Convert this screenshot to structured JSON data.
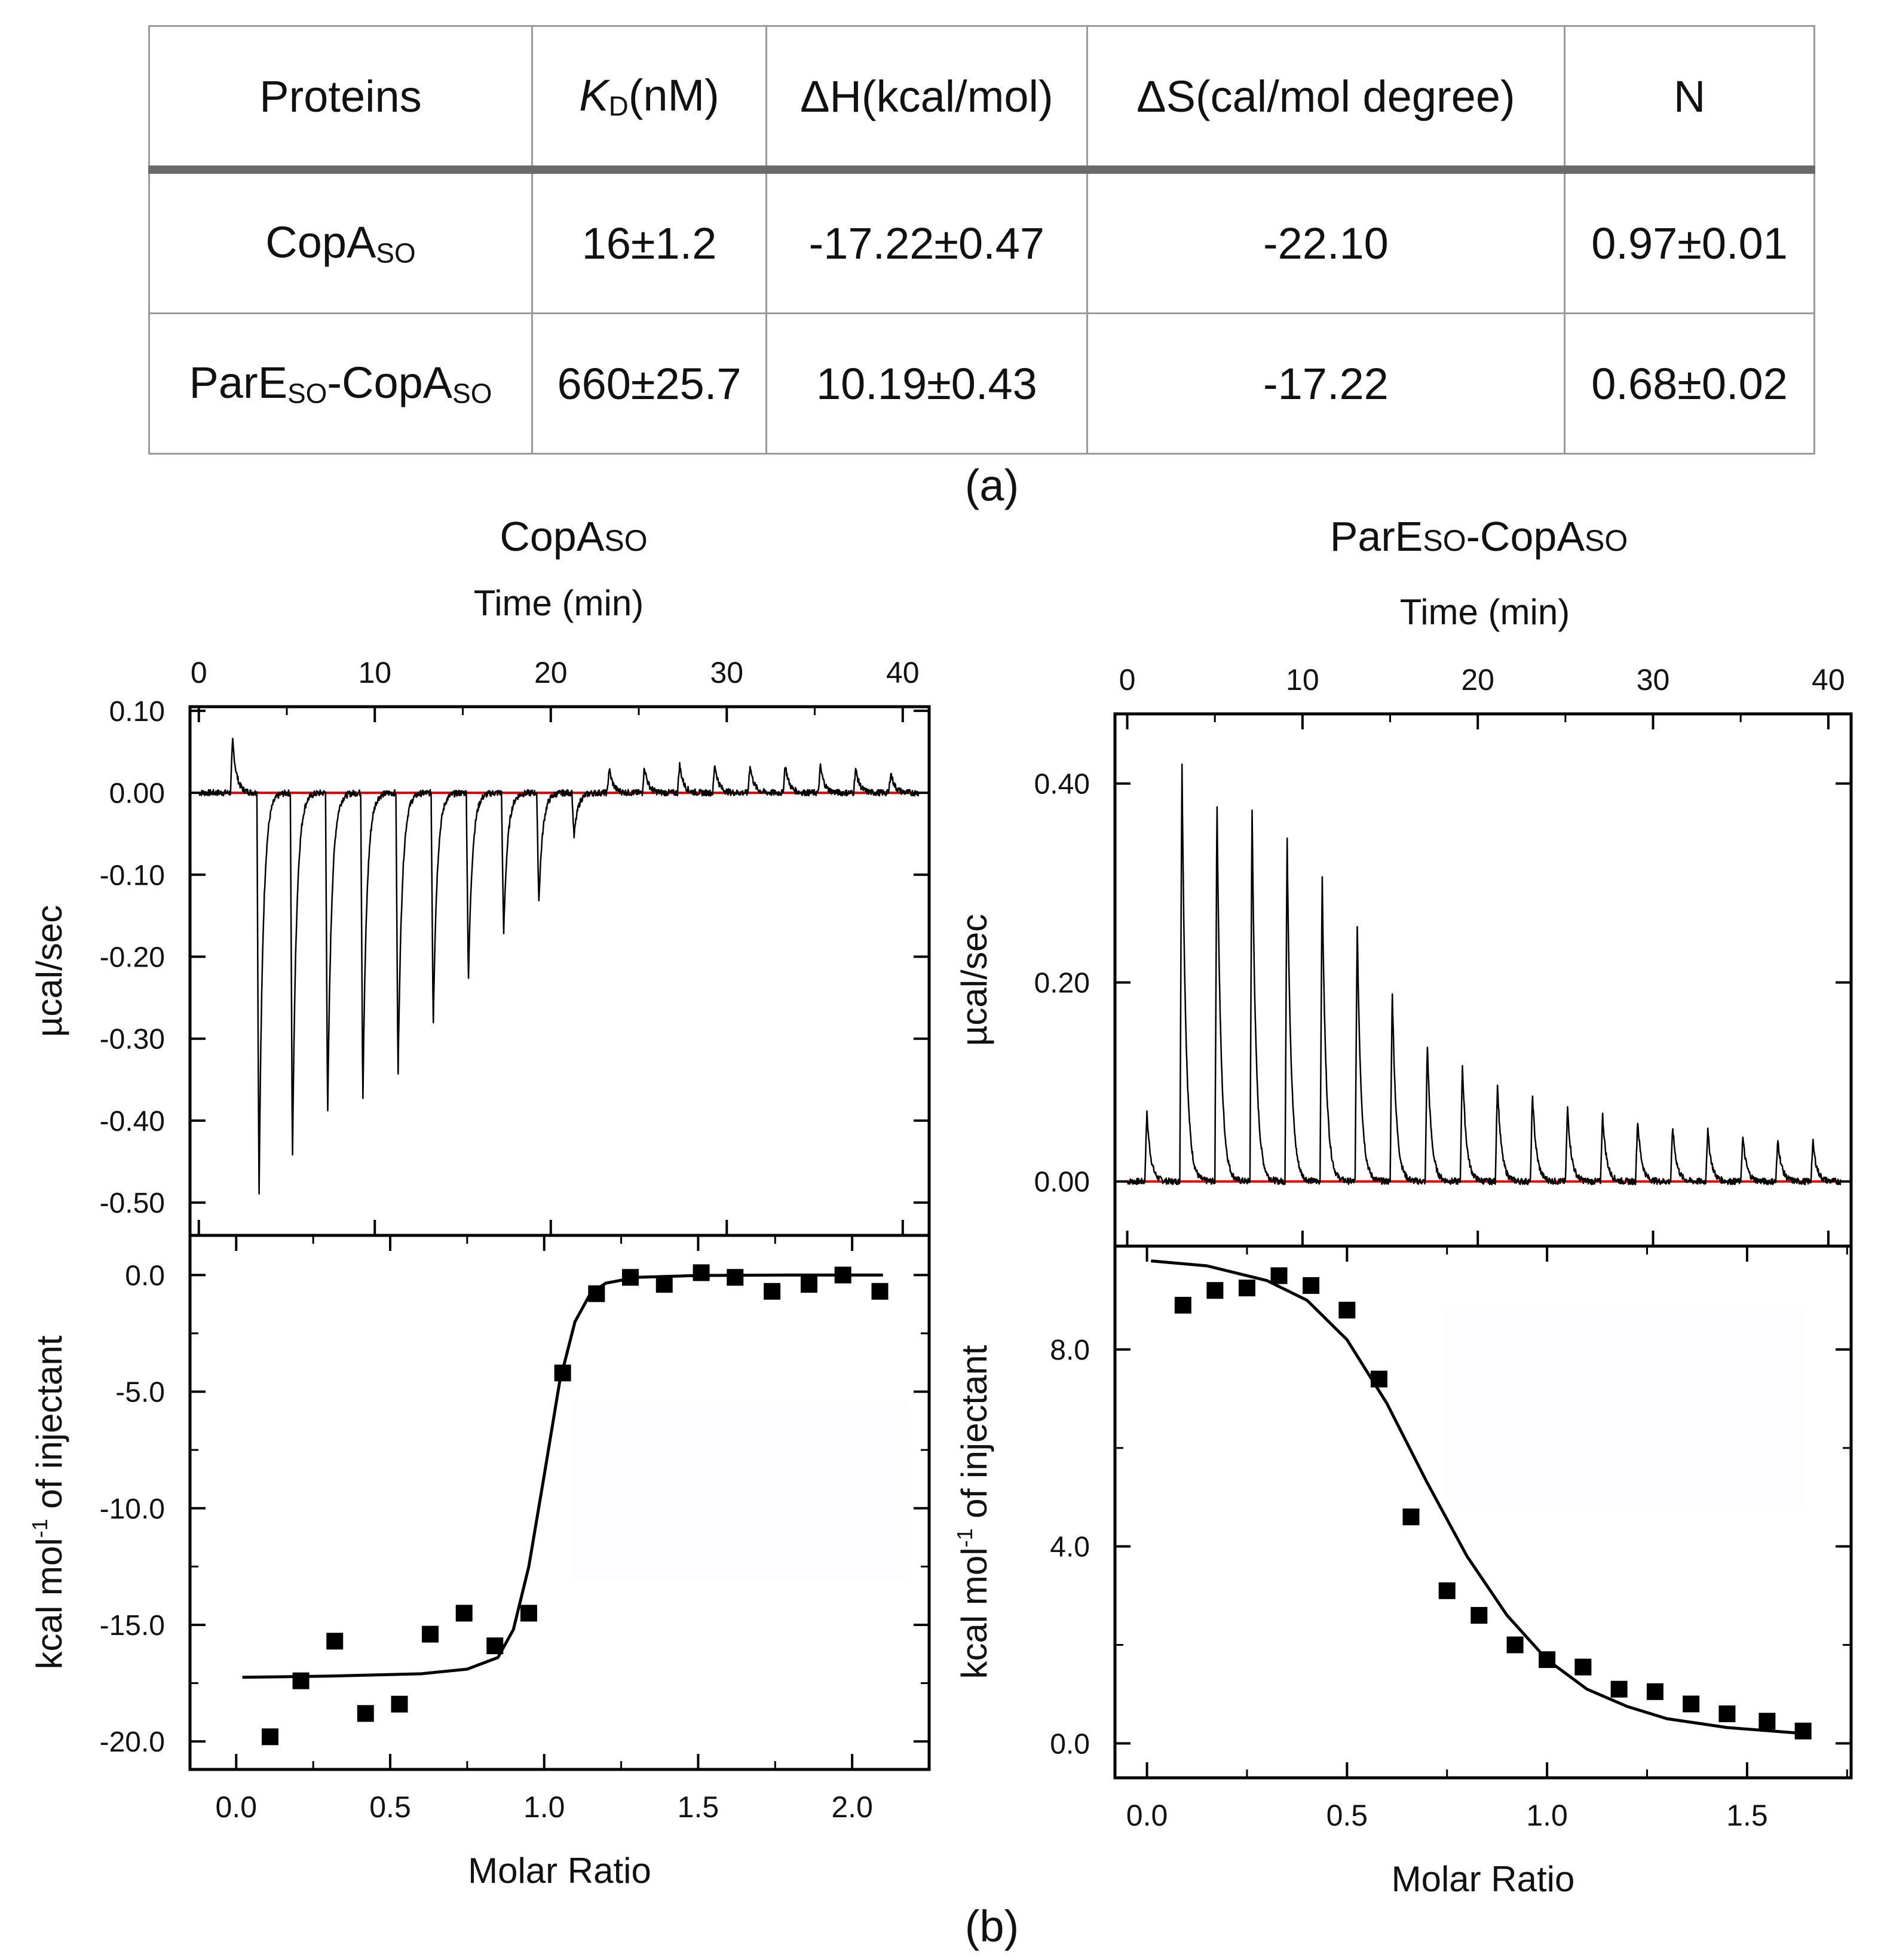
{
  "table": {
    "headers": [
      "Proteins",
      "K",
      "D",
      "(nM)",
      "ΔH(kcal/mol)",
      "ΔS(cal/mol degree)",
      "N"
    ],
    "rows": [
      {
        "protein": "CopA",
        "protein_sub": "SO",
        "protein2": "",
        "protein2_sub": "",
        "kd": "16±1.2",
        "dh": "-17.22±0.47",
        "ds": "-22.10",
        "n": "0.97±0.01"
      },
      {
        "protein": "ParE",
        "protein_sub": "SO",
        "protein2": "-CopA",
        "protein2_sub": "SO",
        "kd": "660±25.7",
        "dh": "10.19±0.43",
        "ds": "-17.22",
        "n": "0.68±0.02"
      }
    ]
  },
  "captions": {
    "a": "(a)",
    "b": "(b)"
  },
  "chart_data": [
    {
      "type": "line",
      "panel": "left-top",
      "title": "CopA",
      "title_sub": "SO",
      "xlabel": "Time (min)",
      "ylabel": "µcal/sec",
      "xlim": [
        -0.5,
        41.5
      ],
      "ylim": [
        -0.54,
        0.105
      ],
      "xticks": [
        0,
        10,
        20,
        30,
        40
      ],
      "yticks": [
        0.1,
        0.0,
        -0.1,
        -0.2,
        -0.3,
        -0.4,
        -0.5
      ],
      "ytick_labels": [
        "0.10",
        "0.00",
        "-0.10",
        "-0.20",
        "-0.30",
        "-0.40",
        "-0.50"
      ],
      "baseline": 0.0,
      "baseline_color": "#e00000",
      "trace_color": "#000000",
      "injections": [
        {
          "t": 1.8,
          "peak": 0.065
        },
        {
          "t": 3.3,
          "peak": -0.5
        },
        {
          "t": 5.2,
          "peak": -0.455
        },
        {
          "t": 7.2,
          "peak": -0.4
        },
        {
          "t": 9.2,
          "peak": -0.38
        },
        {
          "t": 11.2,
          "peak": -0.35
        },
        {
          "t": 13.2,
          "peak": -0.285
        },
        {
          "t": 15.2,
          "peak": -0.23
        },
        {
          "t": 17.2,
          "peak": -0.175
        },
        {
          "t": 19.2,
          "peak": -0.135
        },
        {
          "t": 21.2,
          "peak": -0.055
        },
        {
          "t": 23.2,
          "peak": 0.03
        },
        {
          "t": 25.2,
          "peak": 0.032
        },
        {
          "t": 27.2,
          "peak": 0.035
        },
        {
          "t": 29.2,
          "peak": 0.035
        },
        {
          "t": 31.2,
          "peak": 0.034
        },
        {
          "t": 33.2,
          "peak": 0.035
        },
        {
          "t": 35.2,
          "peak": 0.033
        },
        {
          "t": 37.2,
          "peak": 0.03
        },
        {
          "t": 39.2,
          "peak": 0.025
        }
      ]
    },
    {
      "type": "scatter",
      "panel": "left-bottom",
      "xlabel": "Molar Ratio",
      "ylabel": "kcal mol-1 of injectant",
      "xlim": [
        -0.15,
        2.25
      ],
      "ylim": [
        -21.2,
        1.7
      ],
      "xticks": [
        0.0,
        0.5,
        1.0,
        1.5,
        2.0
      ],
      "xtick_labels": [
        "0.0",
        "0.5",
        "1.0",
        "1.5",
        "2.0"
      ],
      "yticks": [
        0.0,
        -5.0,
        -10.0,
        -15.0,
        -20.0
      ],
      "ytick_labels": [
        "0.0",
        "-5.0",
        "-10.0",
        "-15.0",
        "-20.0"
      ],
      "x": [
        0.11,
        0.21,
        0.32,
        0.42,
        0.53,
        0.63,
        0.74,
        0.84,
        0.95,
        1.06,
        1.17,
        1.28,
        1.39,
        1.51,
        1.62,
        1.74,
        1.86,
        1.97,
        2.09
      ],
      "y": [
        -19.8,
        -17.4,
        -15.7,
        -18.8,
        -18.4,
        -15.4,
        -14.5,
        -15.9,
        -14.5,
        -4.2,
        -0.8,
        -0.1,
        -0.4,
        0.1,
        -0.1,
        -0.7,
        -0.4,
        -0.0,
        -0.7
      ],
      "fit": {
        "x": [
          0.02,
          0.3,
          0.6,
          0.75,
          0.85,
          0.9,
          0.95,
          1.0,
          1.05,
          1.1,
          1.15,
          1.2,
          1.3,
          1.5,
          1.8,
          2.1
        ],
        "y": [
          -17.25,
          -17.2,
          -17.1,
          -16.9,
          -16.4,
          -15.2,
          -12.5,
          -8.6,
          -4.6,
          -2.0,
          -0.8,
          -0.35,
          -0.1,
          -0.02,
          0.0,
          0.0
        ]
      }
    },
    {
      "type": "line",
      "panel": "right-top",
      "title": "ParE",
      "title_sub": "SO",
      "title2": "-CopA",
      "title2_sub": "SO",
      "xlabel": "Time (min)",
      "ylabel": "µcal/sec",
      "xlim": [
        -0.7,
        41.3
      ],
      "ylim": [
        -0.065,
        0.47
      ],
      "xticks": [
        0,
        10,
        20,
        30,
        40
      ],
      "yticks": [
        0.4,
        0.2,
        0.0
      ],
      "ytick_labels": [
        "0.40",
        "0.20",
        "0.00"
      ],
      "baseline": 0.0,
      "baseline_color": "#e00000",
      "trace_color": "#000000",
      "injections": [
        {
          "t": 1.0,
          "peak": 0.07
        },
        {
          "t": 3.0,
          "peak": 0.43
        },
        {
          "t": 5.0,
          "peak": 0.385
        },
        {
          "t": 7.0,
          "peak": 0.38
        },
        {
          "t": 9.0,
          "peak": 0.35
        },
        {
          "t": 11.0,
          "peak": 0.31
        },
        {
          "t": 13.0,
          "peak": 0.26
        },
        {
          "t": 15.0,
          "peak": 0.195
        },
        {
          "t": 17.0,
          "peak": 0.14
        },
        {
          "t": 19.0,
          "peak": 0.12
        },
        {
          "t": 21.0,
          "peak": 0.1
        },
        {
          "t": 23.0,
          "peak": 0.088
        },
        {
          "t": 25.0,
          "peak": 0.075
        },
        {
          "t": 27.0,
          "peak": 0.068
        },
        {
          "t": 29.0,
          "peak": 0.062
        },
        {
          "t": 31.0,
          "peak": 0.055
        },
        {
          "t": 33.0,
          "peak": 0.052
        },
        {
          "t": 35.0,
          "peak": 0.045
        },
        {
          "t": 37.0,
          "peak": 0.042
        },
        {
          "t": 39.0,
          "peak": 0.04
        }
      ]
    },
    {
      "type": "scatter",
      "panel": "right-bottom",
      "xlabel": "Molar Ratio",
      "ylabel": "kcal mol-1 of injectant",
      "xlim": [
        -0.08,
        1.76
      ],
      "ylim": [
        -0.7,
        10.1
      ],
      "xticks": [
        0.0,
        0.5,
        1.0,
        1.5
      ],
      "xtick_labels": [
        "0.0",
        "0.5",
        "1.0",
        "1.5"
      ],
      "yticks": [
        8.0,
        4.0,
        0.0
      ],
      "ytick_labels": [
        "8.0",
        "4.0",
        "0.0"
      ],
      "x": [
        0.09,
        0.17,
        0.25,
        0.33,
        0.41,
        0.5,
        0.58,
        0.66,
        0.75,
        0.83,
        0.92,
        1.0,
        1.09,
        1.18,
        1.27,
        1.36,
        1.45,
        1.55,
        1.64
      ],
      "y": [
        8.9,
        9.2,
        9.25,
        9.5,
        9.3,
        8.8,
        7.4,
        4.6,
        3.1,
        2.6,
        2.0,
        1.7,
        1.55,
        1.1,
        1.05,
        0.8,
        0.6,
        0.45,
        0.25
      ],
      "fit": {
        "x": [
          0.01,
          0.15,
          0.3,
          0.4,
          0.5,
          0.6,
          0.7,
          0.8,
          0.9,
          1.0,
          1.1,
          1.2,
          1.3,
          1.45,
          1.64
        ],
        "y": [
          9.8,
          9.7,
          9.4,
          9.0,
          8.2,
          6.9,
          5.3,
          3.8,
          2.6,
          1.7,
          1.1,
          0.75,
          0.5,
          0.32,
          0.2
        ]
      }
    }
  ]
}
